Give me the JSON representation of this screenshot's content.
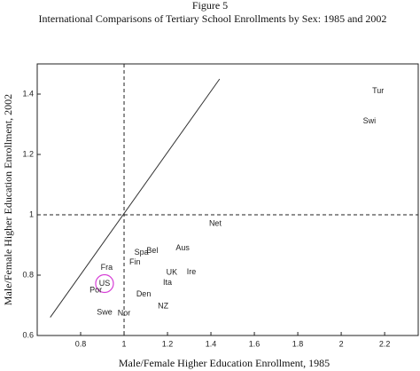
{
  "chart_data": {
    "type": "scatter",
    "title": "Figure 5",
    "subtitle": "International Comparisons of Tertiary School Enrollments by Sex: 1985 and 2002",
    "x_label": "Male/Female Higher Education Enrollment, 1985",
    "y_label": "Male/Female Higher Education Enrollment, 2002",
    "xlim": [
      0.6,
      2.32
    ],
    "ylim": [
      0.6,
      1.5
    ],
    "xticks": [
      0.8,
      1,
      1.2,
      1.4,
      1.6,
      1.8,
      2,
      2.2
    ],
    "yticks": [
      0.6,
      0.8,
      1,
      1.2,
      1.4
    ],
    "hlines": [
      1
    ],
    "vlines": [
      1
    ],
    "diagonal": {
      "x": [
        0.66,
        1.44
      ],
      "y": [
        0.66,
        1.45
      ]
    },
    "highlight_color": "#d63fd6",
    "series": [
      {
        "labels": [
          "Tur",
          "Swi",
          "Net",
          "Aus",
          "Bel",
          "Spa",
          "Fin",
          "Fra",
          "UK",
          "Ire",
          "Ita",
          "US",
          "Por",
          "Den",
          "NZ",
          "Swe",
          "Nor"
        ],
        "x": [
          2.17,
          2.13,
          1.42,
          1.27,
          1.13,
          1.08,
          1.05,
          0.92,
          1.22,
          1.31,
          1.2,
          0.91,
          0.87,
          1.09,
          1.18,
          0.91,
          1.0
        ],
        "values": [
          1.41,
          1.31,
          0.97,
          0.89,
          0.88,
          0.875,
          0.843,
          0.825,
          0.808,
          0.81,
          0.775,
          0.772,
          0.75,
          0.737,
          0.696,
          0.676,
          0.673
        ],
        "circled": [
          false,
          false,
          false,
          false,
          false,
          false,
          false,
          false,
          false,
          false,
          false,
          true,
          false,
          false,
          false,
          false,
          false
        ],
        "color": "#222222"
      }
    ]
  }
}
